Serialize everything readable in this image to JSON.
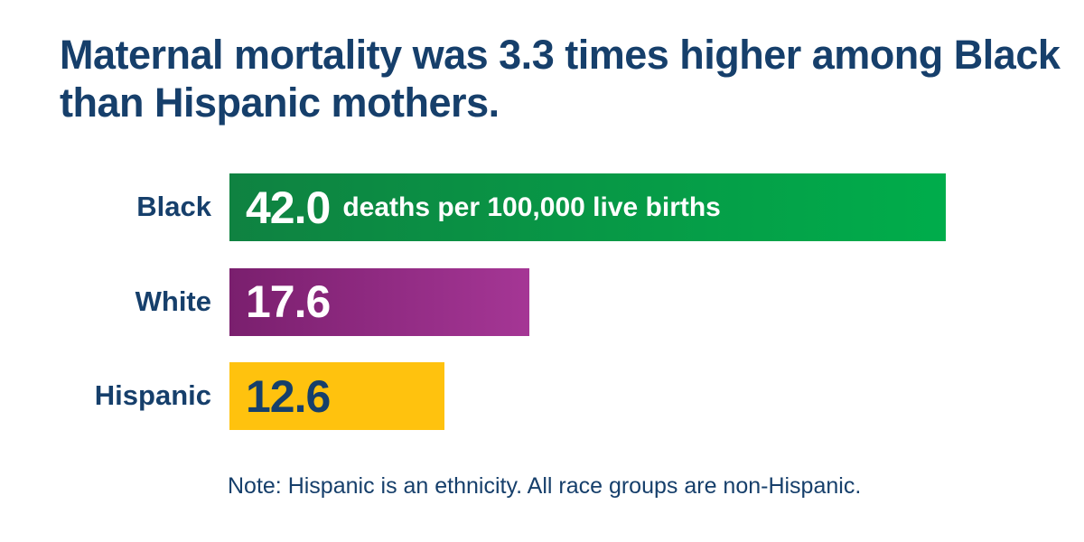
{
  "title": "Maternal mortality was 3.3 times higher among Black than Hispanic mothers.",
  "note": "Note: Hispanic is an ethnicity. All race groups are non-Hispanic.",
  "chart_data": {
    "type": "bar",
    "orientation": "horizontal",
    "title": "Maternal mortality was 3.3 times higher among Black than Hispanic mothers.",
    "categories": [
      "Black",
      "White",
      "Hispanic"
    ],
    "values": [
      42.0,
      17.6,
      12.6
    ],
    "value_labels": [
      "42.0",
      "17.6",
      "12.6"
    ],
    "unit_label": "deaths per 100,000 live births",
    "xlabel": "",
    "ylabel": "",
    "xlim": [
      0,
      42.0
    ],
    "grid": false,
    "legend": "none",
    "colors": {
      "Black": [
        "#0f8241",
        "#00ad4b"
      ],
      "White": [
        "#7a1f6e",
        "#a53695"
      ],
      "Hispanic": [
        "#ffc20e",
        "#ffc20e"
      ]
    },
    "value_text_colors": {
      "Black": "#ffffff",
      "White": "#ffffff",
      "Hispanic": "#163f6b"
    }
  }
}
